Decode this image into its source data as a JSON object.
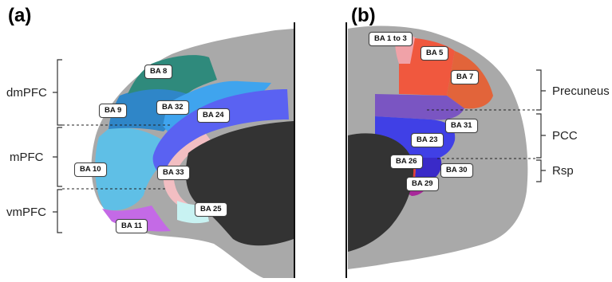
{
  "panels": [
    {
      "letter": "(a)"
    },
    {
      "letter": "(b)"
    }
  ],
  "left_regions": [
    "dmPFC",
    "mPFC",
    "vmPFC"
  ],
  "right_regions": [
    "Precuneus",
    "PCC",
    "Rsp"
  ],
  "areas_a": [
    "BA 8",
    "BA 9",
    "BA 32",
    "BA 24",
    "BA 10",
    "BA 33",
    "BA 25",
    "BA 11"
  ],
  "areas_b": [
    "BA 1 to 3",
    "BA 5",
    "BA 7",
    "BA 31",
    "BA 23",
    "BA 26",
    "BA 30",
    "BA 29"
  ],
  "colors": {
    "ba8": "#2f8a7c",
    "ba9": "#2f86c8",
    "ba32": "#3fa4ee",
    "ba24": "#5a62f2",
    "ba10": "#5fbfe6",
    "ba33": "#f2bec2",
    "ba25": "#c8f2f2",
    "ba11": "#c46ae6",
    "ba1_3": "#f0a2a8",
    "ba5": "#f0583e",
    "ba7": "#e2643a",
    "ba31": "#7a55c2",
    "ba23": "#4040e6",
    "ba26": "#e04038",
    "ba30": "#3a2ac8",
    "ba29": "#a8289a",
    "cortex": "#a9a9a9",
    "callosum": "#333333"
  }
}
